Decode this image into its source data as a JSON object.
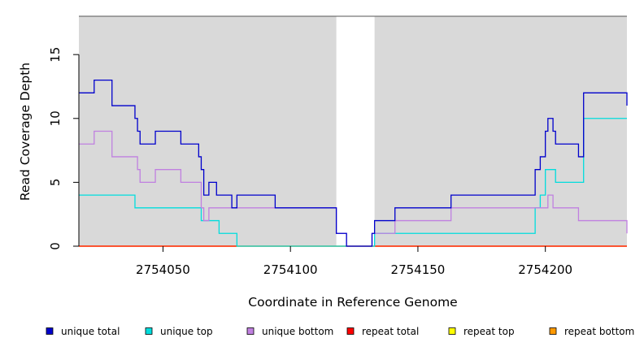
{
  "chart_data": {
    "type": "line",
    "xlabel": "Coordinate in Reference Genome",
    "ylabel": "Read Coverage Depth",
    "xlim": [
      2754017,
      2754232
    ],
    "ylim": [
      0,
      18
    ],
    "x_ticks": [
      2754050,
      2754100,
      2754150,
      2754200
    ],
    "y_ticks": [
      0,
      5,
      10,
      15
    ],
    "grid": false,
    "shaded_regions": [
      [
        2754017,
        2754118
      ],
      [
        2754133,
        2754232
      ]
    ],
    "shade_color": "#d9d9d9",
    "legend_position": "bottom",
    "series": [
      {
        "name": "unique total",
        "color": "#0000cc",
        "steps": [
          [
            2754017,
            12
          ],
          [
            2754023,
            13
          ],
          [
            2754030,
            11
          ],
          [
            2754039,
            10
          ],
          [
            2754040,
            9
          ],
          [
            2754041,
            8
          ],
          [
            2754047,
            9
          ],
          [
            2754057,
            8
          ],
          [
            2754064,
            7
          ],
          [
            2754065,
            6
          ],
          [
            2754066,
            4
          ],
          [
            2754068,
            5
          ],
          [
            2754071,
            4
          ],
          [
            2754077,
            3
          ],
          [
            2754079,
            4
          ],
          [
            2754094,
            3
          ],
          [
            2754118,
            1
          ],
          [
            2754122,
            0
          ],
          [
            2754132,
            1
          ],
          [
            2754133,
            2
          ],
          [
            2754141,
            3
          ],
          [
            2754163,
            4
          ],
          [
            2754196,
            6
          ],
          [
            2754198,
            7
          ],
          [
            2754200,
            9
          ],
          [
            2754201,
            10
          ],
          [
            2754203,
            9
          ],
          [
            2754204,
            8
          ],
          [
            2754213,
            7
          ],
          [
            2754215,
            12
          ],
          [
            2754232,
            11
          ]
        ]
      },
      {
        "name": "unique top",
        "color": "#00dddd",
        "steps": [
          [
            2754017,
            4
          ],
          [
            2754039,
            3
          ],
          [
            2754065,
            2
          ],
          [
            2754072,
            1
          ],
          [
            2754079,
            0
          ],
          [
            2754122,
            0
          ],
          [
            2754133,
            1
          ],
          [
            2754196,
            3
          ],
          [
            2754198,
            4
          ],
          [
            2754200,
            6
          ],
          [
            2754204,
            5
          ],
          [
            2754215,
            10
          ]
        ]
      },
      {
        "name": "unique bottom",
        "color": "#c080e0",
        "steps": [
          [
            2754017,
            8
          ],
          [
            2754023,
            9
          ],
          [
            2754030,
            7
          ],
          [
            2754040,
            6
          ],
          [
            2754041,
            5
          ],
          [
            2754047,
            6
          ],
          [
            2754057,
            5
          ],
          [
            2754065,
            3
          ],
          [
            2754066,
            2
          ],
          [
            2754068,
            3
          ],
          [
            2754079,
            3
          ],
          [
            2754118,
            1
          ],
          [
            2754122,
            0
          ],
          [
            2754132,
            1
          ],
          [
            2754141,
            2
          ],
          [
            2754163,
            3
          ],
          [
            2754201,
            4
          ],
          [
            2754203,
            3
          ],
          [
            2754213,
            2
          ],
          [
            2754232,
            1
          ]
        ]
      },
      {
        "name": "repeat total",
        "color": "#ff0000",
        "steps": [
          [
            2754017,
            0
          ]
        ]
      },
      {
        "name": "repeat top",
        "color": "#ffff00",
        "steps": [
          [
            2754017,
            0
          ]
        ]
      },
      {
        "name": "repeat bottom",
        "color": "#ff9900",
        "steps": [
          [
            2754017,
            0
          ]
        ]
      }
    ]
  }
}
